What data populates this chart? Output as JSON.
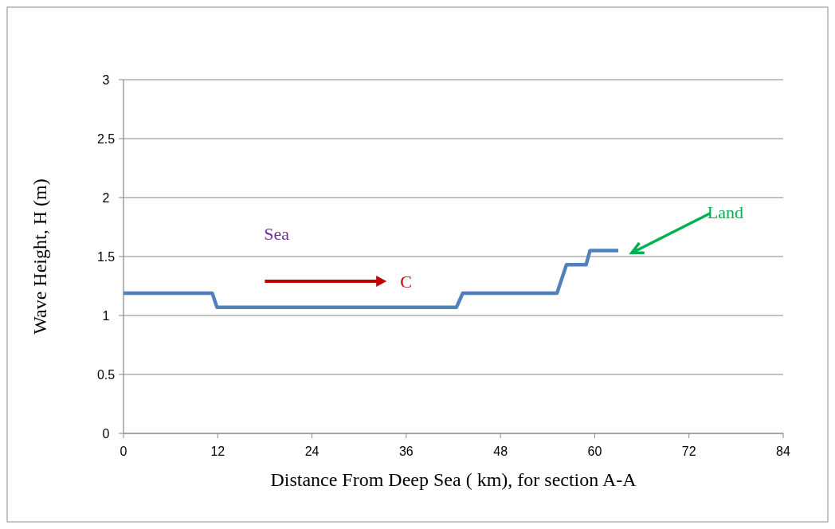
{
  "chart_data": {
    "type": "line",
    "xlabel": "Distance From Deep Sea ( km), for section A-A",
    "ylabel": "Wave Height, H (m)",
    "series": [
      {
        "color": "#4f81bd",
        "x": [
          0,
          11.3,
          11.9,
          42.4,
          43.2,
          55.2,
          56.4,
          58.9,
          59.4,
          63.0
        ],
        "values": [
          1.19,
          1.19,
          1.07,
          1.07,
          1.19,
          1.19,
          1.43,
          1.43,
          1.55,
          1.55
        ]
      }
    ],
    "xlim": [
      0,
      84
    ],
    "xticks": [
      0,
      12,
      24,
      36,
      48,
      60,
      72,
      84
    ],
    "ylim": [
      0,
      3
    ],
    "yticks": [
      0,
      0.5,
      1,
      1.5,
      2,
      2.5,
      3
    ],
    "grid": "y",
    "marker": "none",
    "line_style": "solid",
    "annotations": [
      "Sea",
      "C",
      "Land"
    ]
  }
}
